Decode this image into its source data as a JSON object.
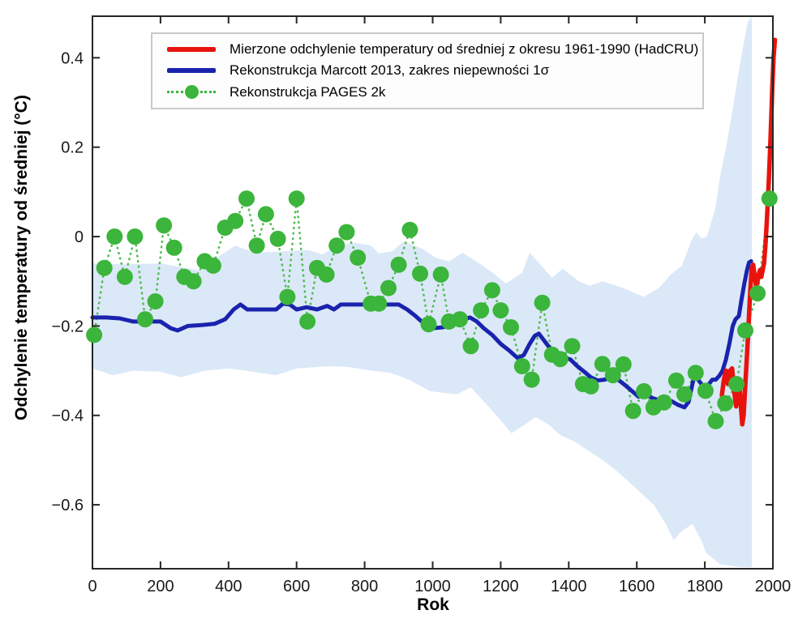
{
  "figure": {
    "xlabel": "Rok",
    "ylabel": "Odchylenie temperatury od średniej (°C)"
  },
  "legend": {
    "items": [
      {
        "label": "Mierzone odchylenie temperatury od średniej z okresu 1961-1990 (HadCRU)",
        "swatch": "red-line",
        "color": "#e8130d"
      },
      {
        "label": "Rekonstrukcja Marcott 2013, zakres niepewności 1σ",
        "swatch": "blue-line",
        "color": "#1a23ae"
      },
      {
        "label": "Rekonstrukcja PAGES 2k",
        "swatch": "green-dotted-marker",
        "color": "#3bb53b"
      }
    ]
  },
  "colors": {
    "band": "#dbe8f7",
    "marcott_blue": "#1a23ae",
    "hadcru_red": "#e8130d",
    "pages_green": "#3bb53b",
    "pages_dotted": "#4fbc4f",
    "axis": "#262626",
    "tick_label": "#1a1a1a",
    "legend_border": "#c9c9c9",
    "legend_bg": "#fdfdfd"
  },
  "chart_data": {
    "type": "line",
    "title": "",
    "xlabel": "Rok",
    "ylabel": "Odchylenie temperatury od średniej (°C)",
    "xlim": [
      0,
      2000
    ],
    "ylim": [
      -0.743,
      0.493
    ],
    "grid": false,
    "legend_position": "top-left-inside",
    "xticks": [
      0,
      200,
      400,
      600,
      800,
      1000,
      1200,
      1400,
      1600,
      1800,
      2000
    ],
    "xtick_labels": [
      "0",
      "200",
      "400",
      "600",
      "800",
      "1000",
      "1200",
      "1400",
      "1600",
      "1800",
      "2000"
    ],
    "yticks": [
      0.4,
      0.2,
      0,
      -0.2,
      -0.4,
      -0.6
    ],
    "ytick_labels": [
      "0.4",
      "0.2",
      "0",
      "−0.2",
      "−0.4",
      "−0.6"
    ],
    "series": [
      {
        "id": "marcott-uncertainty",
        "name": "Zakres niepewności 1σ (Marcott 2013)",
        "type": "band",
        "color": "#dbe8f7",
        "upper": [
          [
            0,
            -0.06
          ],
          [
            100,
            -0.062
          ],
          [
            200,
            -0.06
          ],
          [
            310,
            -0.075
          ],
          [
            370,
            -0.045
          ],
          [
            420,
            -0.02
          ],
          [
            470,
            -0.035
          ],
          [
            520,
            -0.035
          ],
          [
            635,
            -0.03
          ],
          [
            675,
            -0.04
          ],
          [
            730,
            -0.018
          ],
          [
            771,
            -0.014
          ],
          [
            819,
            -0.02
          ],
          [
            842,
            -0.038
          ],
          [
            881,
            -0.033
          ],
          [
            914,
            -0.011
          ],
          [
            969,
            -0.027
          ],
          [
            1009,
            -0.047
          ],
          [
            1048,
            -0.056
          ],
          [
            1088,
            -0.036
          ],
          [
            1129,
            -0.056
          ],
          [
            1177,
            -0.081
          ],
          [
            1215,
            -0.105
          ],
          [
            1263,
            -0.081
          ],
          [
            1285,
            -0.036
          ],
          [
            1351,
            -0.092
          ],
          [
            1382,
            -0.072
          ],
          [
            1430,
            -0.1
          ],
          [
            1460,
            -0.11
          ],
          [
            1500,
            -0.1
          ],
          [
            1560,
            -0.115
          ],
          [
            1620,
            -0.135
          ],
          [
            1665,
            -0.115
          ],
          [
            1700,
            -0.085
          ],
          [
            1733,
            -0.065
          ],
          [
            1760,
            -0.01
          ],
          [
            1775,
            0.01
          ],
          [
            1790,
            -0.005
          ],
          [
            1806,
            0.0
          ],
          [
            1830,
            0.06
          ],
          [
            1845,
            0.135
          ],
          [
            1865,
            0.21
          ],
          [
            1883,
            0.29
          ],
          [
            1900,
            0.37
          ],
          [
            1915,
            0.435
          ],
          [
            1926,
            0.48
          ],
          [
            1938,
            0.493
          ]
        ],
        "lower": [
          [
            0,
            -0.295
          ],
          [
            60,
            -0.31
          ],
          [
            120,
            -0.3
          ],
          [
            200,
            -0.302
          ],
          [
            260,
            -0.315
          ],
          [
            330,
            -0.3
          ],
          [
            400,
            -0.295
          ],
          [
            470,
            -0.302
          ],
          [
            540,
            -0.31
          ],
          [
            600,
            -0.295
          ],
          [
            700,
            -0.29
          ],
          [
            754,
            -0.292
          ],
          [
            820,
            -0.3
          ],
          [
            873,
            -0.304
          ],
          [
            930,
            -0.32
          ],
          [
            993,
            -0.346
          ],
          [
            1040,
            -0.35
          ],
          [
            1072,
            -0.353
          ],
          [
            1112,
            -0.337
          ],
          [
            1177,
            -0.391
          ],
          [
            1232,
            -0.44
          ],
          [
            1303,
            -0.404
          ],
          [
            1340,
            -0.42
          ],
          [
            1375,
            -0.444
          ],
          [
            1420,
            -0.46
          ],
          [
            1450,
            -0.475
          ],
          [
            1500,
            -0.5
          ],
          [
            1550,
            -0.53
          ],
          [
            1600,
            -0.565
          ],
          [
            1650,
            -0.6
          ],
          [
            1685,
            -0.643
          ],
          [
            1709,
            -0.679
          ],
          [
            1730,
            -0.66
          ],
          [
            1764,
            -0.643
          ],
          [
            1790,
            -0.68
          ],
          [
            1804,
            -0.708
          ],
          [
            1845,
            -0.733
          ],
          [
            1900,
            -0.739
          ],
          [
            1938,
            -0.74
          ]
        ]
      },
      {
        "id": "pages2k",
        "name": "Rekonstrukcja PAGES 2k",
        "type": "scatter-dotted",
        "color": "#3bb53b",
        "line_color": "#4fbc4f",
        "marker_radius": 10,
        "points": [
          [
            5,
            -0.22
          ],
          [
            35,
            -0.07
          ],
          [
            65,
            0.0
          ],
          [
            95,
            -0.09
          ],
          [
            125,
            0.0
          ],
          [
            155,
            -0.185
          ],
          [
            185,
            -0.145
          ],
          [
            210,
            0.025
          ],
          [
            240,
            -0.025
          ],
          [
            270,
            -0.09
          ],
          [
            297,
            -0.1
          ],
          [
            330,
            -0.055
          ],
          [
            355,
            -0.065
          ],
          [
            390,
            0.02
          ],
          [
            420,
            0.035
          ],
          [
            453,
            0.085
          ],
          [
            483,
            -0.02
          ],
          [
            510,
            0.05
          ],
          [
            545,
            -0.005
          ],
          [
            573,
            -0.135
          ],
          [
            600,
            0.085
          ],
          [
            632,
            -0.19
          ],
          [
            660,
            -0.07
          ],
          [
            688,
            -0.085
          ],
          [
            718,
            -0.02
          ],
          [
            747,
            0.01
          ],
          [
            780,
            -0.047
          ],
          [
            818,
            -0.15
          ],
          [
            842,
            -0.15
          ],
          [
            870,
            -0.115
          ],
          [
            900,
            -0.063
          ],
          [
            933,
            0.015
          ],
          [
            963,
            -0.083
          ],
          [
            988,
            -0.196
          ],
          [
            1024,
            -0.085
          ],
          [
            1048,
            -0.19
          ],
          [
            1080,
            -0.185
          ],
          [
            1112,
            -0.245
          ],
          [
            1142,
            -0.165
          ],
          [
            1175,
            -0.12
          ],
          [
            1200,
            -0.165
          ],
          [
            1230,
            -0.203
          ],
          [
            1263,
            -0.29
          ],
          [
            1291,
            -0.32
          ],
          [
            1322,
            -0.148
          ],
          [
            1351,
            -0.264
          ],
          [
            1375,
            -0.274
          ],
          [
            1410,
            -0.245
          ],
          [
            1442,
            -0.33
          ],
          [
            1465,
            -0.335
          ],
          [
            1499,
            -0.285
          ],
          [
            1530,
            -0.31
          ],
          [
            1561,
            -0.286
          ],
          [
            1589,
            -0.39
          ],
          [
            1621,
            -0.346
          ],
          [
            1649,
            -0.382
          ],
          [
            1680,
            -0.371
          ],
          [
            1716,
            -0.322
          ],
          [
            1740,
            -0.353
          ],
          [
            1773,
            -0.305
          ],
          [
            1802,
            -0.345
          ],
          [
            1832,
            -0.413
          ],
          [
            1860,
            -0.373
          ],
          [
            1893,
            -0.33
          ],
          [
            1919,
            -0.21
          ],
          [
            1955,
            -0.127
          ],
          [
            1990,
            0.085
          ]
        ]
      },
      {
        "id": "marcott",
        "name": "Rekonstrukcja Marcott 2013",
        "type": "line",
        "color": "#1a23ae",
        "width": 5,
        "points": [
          [
            0,
            -0.181
          ],
          [
            40,
            -0.181
          ],
          [
            80,
            -0.183
          ],
          [
            120,
            -0.19
          ],
          [
            160,
            -0.19
          ],
          [
            200,
            -0.19
          ],
          [
            230,
            -0.205
          ],
          [
            250,
            -0.21
          ],
          [
            280,
            -0.2
          ],
          [
            320,
            -0.198
          ],
          [
            360,
            -0.195
          ],
          [
            390,
            -0.185
          ],
          [
            415,
            -0.163
          ],
          [
            435,
            -0.152
          ],
          [
            455,
            -0.163
          ],
          [
            500,
            -0.163
          ],
          [
            540,
            -0.163
          ],
          [
            560,
            -0.15
          ],
          [
            580,
            -0.152
          ],
          [
            600,
            -0.163
          ],
          [
            630,
            -0.158
          ],
          [
            660,
            -0.163
          ],
          [
            690,
            -0.155
          ],
          [
            710,
            -0.163
          ],
          [
            730,
            -0.152
          ],
          [
            780,
            -0.152
          ],
          [
            840,
            -0.152
          ],
          [
            900,
            -0.152
          ],
          [
            925,
            -0.163
          ],
          [
            950,
            -0.178
          ],
          [
            975,
            -0.195
          ],
          [
            1000,
            -0.205
          ],
          [
            1030,
            -0.203
          ],
          [
            1060,
            -0.196
          ],
          [
            1090,
            -0.185
          ],
          [
            1110,
            -0.181
          ],
          [
            1130,
            -0.19
          ],
          [
            1150,
            -0.205
          ],
          [
            1175,
            -0.22
          ],
          [
            1200,
            -0.24
          ],
          [
            1225,
            -0.255
          ],
          [
            1250,
            -0.272
          ],
          [
            1268,
            -0.265
          ],
          [
            1285,
            -0.24
          ],
          [
            1300,
            -0.222
          ],
          [
            1312,
            -0.217
          ],
          [
            1325,
            -0.23
          ],
          [
            1345,
            -0.25
          ],
          [
            1365,
            -0.262
          ],
          [
            1385,
            -0.27
          ],
          [
            1405,
            -0.275
          ],
          [
            1425,
            -0.29
          ],
          [
            1445,
            -0.302
          ],
          [
            1465,
            -0.315
          ],
          [
            1485,
            -0.322
          ],
          [
            1505,
            -0.32
          ],
          [
            1525,
            -0.316
          ],
          [
            1545,
            -0.32
          ],
          [
            1565,
            -0.332
          ],
          [
            1585,
            -0.345
          ],
          [
            1605,
            -0.358
          ],
          [
            1625,
            -0.352
          ],
          [
            1645,
            -0.361
          ],
          [
            1665,
            -0.366
          ],
          [
            1685,
            -0.376
          ],
          [
            1702,
            -0.368
          ],
          [
            1720,
            -0.376
          ],
          [
            1740,
            -0.382
          ],
          [
            1752,
            -0.37
          ],
          [
            1762,
            -0.335
          ],
          [
            1770,
            -0.308
          ],
          [
            1778,
            -0.318
          ],
          [
            1790,
            -0.33
          ],
          [
            1800,
            -0.34
          ],
          [
            1812,
            -0.33
          ],
          [
            1822,
            -0.32
          ],
          [
            1832,
            -0.32
          ],
          [
            1842,
            -0.312
          ],
          [
            1852,
            -0.3
          ],
          [
            1862,
            -0.275
          ],
          [
            1872,
            -0.24
          ],
          [
            1882,
            -0.2
          ],
          [
            1890,
            -0.185
          ],
          [
            1900,
            -0.178
          ],
          [
            1908,
            -0.14
          ],
          [
            1916,
            -0.105
          ],
          [
            1924,
            -0.075
          ],
          [
            1930,
            -0.058
          ],
          [
            1936,
            -0.055
          ]
        ]
      },
      {
        "id": "hadcru",
        "name": "Mierzone odchylenie temperatury (HadCRU)",
        "type": "line",
        "color": "#e8130d",
        "width": 5.5,
        "points": [
          [
            1850,
            -0.355
          ],
          [
            1856,
            -0.32
          ],
          [
            1862,
            -0.3
          ],
          [
            1868,
            -0.33
          ],
          [
            1874,
            -0.3
          ],
          [
            1880,
            -0.295
          ],
          [
            1886,
            -0.345
          ],
          [
            1892,
            -0.38
          ],
          [
            1898,
            -0.345
          ],
          [
            1902,
            -0.33
          ],
          [
            1906,
            -0.38
          ],
          [
            1910,
            -0.42
          ],
          [
            1914,
            -0.4
          ],
          [
            1918,
            -0.345
          ],
          [
            1922,
            -0.29
          ],
          [
            1926,
            -0.235
          ],
          [
            1930,
            -0.175
          ],
          [
            1934,
            -0.115
          ],
          [
            1938,
            -0.07
          ],
          [
            1942,
            -0.063
          ],
          [
            1946,
            -0.085
          ],
          [
            1950,
            -0.108
          ],
          [
            1954,
            -0.105
          ],
          [
            1958,
            -0.085
          ],
          [
            1962,
            -0.075
          ],
          [
            1966,
            -0.09
          ],
          [
            1970,
            -0.075
          ],
          [
            1974,
            -0.06
          ],
          [
            1978,
            -0.02
          ],
          [
            1982,
            0.03
          ],
          [
            1986,
            0.09
          ],
          [
            1990,
            0.16
          ],
          [
            1994,
            0.24
          ],
          [
            1998,
            0.33
          ],
          [
            2002,
            0.4
          ],
          [
            2006,
            0.44
          ]
        ]
      }
    ]
  }
}
